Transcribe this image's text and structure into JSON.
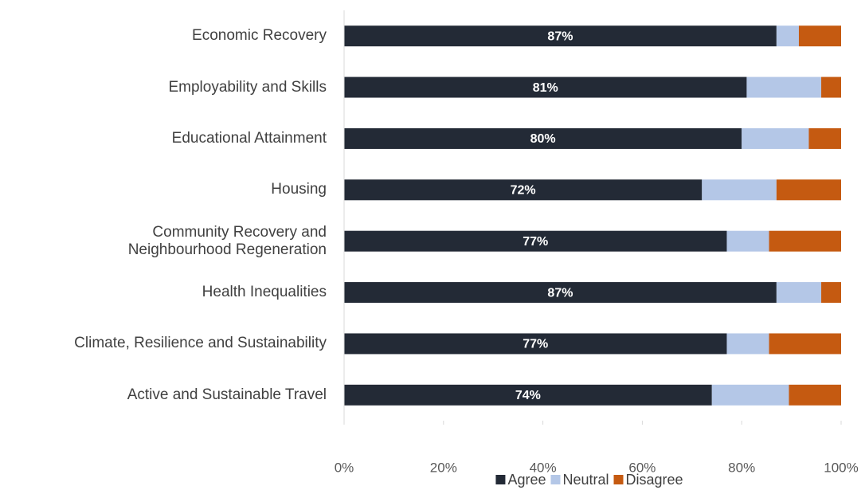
{
  "chart_data": {
    "type": "stacked_barh",
    "categories": [
      "Economic Recovery",
      "Employability and Skills",
      "Educational Attainment",
      "Housing",
      "Community Recovery and\nNeighbourhood Regeneration",
      "Health Inequalities",
      "Climate, Resilience and Sustainability",
      "Active and Sustainable Travel"
    ],
    "series": [
      {
        "name": "Agree",
        "color": "#232a36",
        "values": [
          87,
          81,
          80,
          72,
          77,
          87,
          77,
          74
        ],
        "value_labels": [
          "87%",
          "81%",
          "80%",
          "72%",
          "77%",
          "87%",
          "77%",
          "74%"
        ]
      },
      {
        "name": "Neutral",
        "color": "#b4c7e7",
        "values": [
          4.5,
          15,
          13.5,
          15,
          8.5,
          9,
          8.5,
          15.5
        ]
      },
      {
        "name": "Disagree",
        "color": "#c55a11",
        "values": [
          8.5,
          4,
          6.5,
          13,
          14.5,
          4,
          14.5,
          10.5
        ]
      }
    ],
    "xlim": [
      0,
      100
    ],
    "xticks": [
      {
        "value": 0,
        "label": "0%"
      },
      {
        "value": 20,
        "label": "20%"
      },
      {
        "value": 40,
        "label": "40%"
      },
      {
        "value": 60,
        "label": "60%"
      },
      {
        "value": 80,
        "label": "80%"
      },
      {
        "value": 100,
        "label": "100%"
      }
    ],
    "grid": false,
    "legend": "bottom"
  }
}
